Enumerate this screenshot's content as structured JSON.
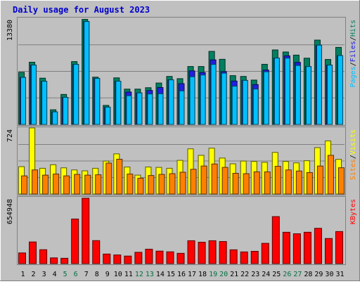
{
  "title": "Daily usage for August 2023",
  "colors": {
    "background": "#c0c0c0",
    "border_light": "#ffffff",
    "border_dark": "#808080",
    "title_text": "#0000cc",
    "hits_bar": "#008060",
    "files_bar": "#2020e0",
    "pages_bar": "#00c0ff",
    "visits_bar": "#ffff00",
    "sites_bar": "#ff8000",
    "kbytes_bar": "#ff0000",
    "weekend_day_label": "#007040",
    "weekday_day_label": "#000000"
  },
  "chart_data": [
    {
      "type": "bar",
      "panel": "hits-files-pages",
      "y_tick_label": "13380",
      "legend": [
        "Pages",
        "Files",
        "Hits"
      ],
      "legend_separator": "/",
      "categories": [
        "1",
        "2",
        "3",
        "4",
        "5",
        "6",
        "7",
        "8",
        "9",
        "10",
        "11",
        "12",
        "13",
        "14",
        "15",
        "16",
        "17",
        "18",
        "19",
        "20",
        "21",
        "22",
        "23",
        "24",
        "25",
        "26",
        "27",
        "28",
        "29",
        "30",
        "31"
      ],
      "ylim": [
        0,
        13380
      ],
      "grid": true,
      "series": [
        {
          "name": "Hits",
          "color_key": "hits_bar",
          "values": [
            6570,
            7840,
            5830,
            1850,
            3780,
            7920,
            13240,
            5960,
            2400,
            5870,
            4450,
            4450,
            4630,
            5220,
            6050,
            5770,
            7300,
            7300,
            9210,
            8210,
            6150,
            6050,
            5590,
            7580,
            9390,
            9130,
            8740,
            8350,
            10630,
            8190,
            9710
          ]
        },
        {
          "name": "Files",
          "color_key": "files_bar",
          "values": [
            5930,
            7480,
            5440,
            1580,
            3410,
            7570,
            12970,
            5800,
            2180,
            5450,
            4080,
            3970,
            4280,
            4650,
            5620,
            5140,
            6750,
            6540,
            8140,
            6660,
            5470,
            5550,
            5020,
            6860,
            8370,
            8650,
            7820,
            7300,
            9990,
            7480,
            8680
          ]
        },
        {
          "name": "Pages",
          "color_key": "pages_bar",
          "values": [
            5930,
            7480,
            5440,
            1580,
            3410,
            7570,
            12970,
            5800,
            2180,
            5450,
            3620,
            3970,
            3840,
            3870,
            5620,
            4230,
            6010,
            6230,
            7560,
            6460,
            4820,
            5550,
            4460,
            6630,
            8370,
            8350,
            7430,
            7300,
            9990,
            7480,
            8680
          ]
        }
      ]
    },
    {
      "type": "bar",
      "panel": "visits-sites",
      "y_tick_label": "724",
      "legend": [
        "Sites",
        "Visits"
      ],
      "legend_separator": "/",
      "categories": [
        "1",
        "2",
        "3",
        "4",
        "5",
        "6",
        "7",
        "8",
        "9",
        "10",
        "11",
        "12",
        "13",
        "14",
        "15",
        "16",
        "17",
        "18",
        "19",
        "20",
        "21",
        "22",
        "23",
        "24",
        "25",
        "26",
        "27",
        "28",
        "29",
        "30",
        "31"
      ],
      "ylim": [
        0,
        724
      ],
      "grid": true,
      "series": [
        {
          "name": "Visits",
          "color_key": "visits_bar",
          "values": [
            300,
            724,
            282,
            321,
            287,
            264,
            254,
            282,
            361,
            440,
            296,
            207,
            296,
            292,
            282,
            369,
            495,
            424,
            502,
            394,
            331,
            361,
            357,
            347,
            456,
            357,
            341,
            365,
            508,
            582,
            380
          ]
        },
        {
          "name": "Sites",
          "color_key": "sites_bar",
          "values": [
            199,
            264,
            207,
            219,
            199,
            215,
            207,
            211,
            339,
            381,
            219,
            173,
            203,
            215,
            223,
            239,
            271,
            307,
            329,
            292,
            227,
            223,
            243,
            243,
            304,
            264,
            252,
            235,
            307,
            424,
            288
          ]
        }
      ]
    },
    {
      "type": "bar",
      "panel": "kbytes",
      "y_tick_label": "654948",
      "legend": [
        "KBytes"
      ],
      "categories": [
        "1",
        "2",
        "3",
        "4",
        "5",
        "6",
        "7",
        "8",
        "9",
        "10",
        "11",
        "12",
        "13",
        "14",
        "15",
        "16",
        "17",
        "18",
        "19",
        "20",
        "21",
        "22",
        "23",
        "24",
        "25",
        "26",
        "27",
        "28",
        "29",
        "30",
        "31"
      ],
      "ylim": [
        0,
        654948
      ],
      "grid": false,
      "series": [
        {
          "name": "KBytes",
          "color_key": "kbytes_bar",
          "values": [
            106000,
            215000,
            138000,
            57000,
            53000,
            442000,
            648000,
            228000,
            95000,
            86000,
            75000,
            112000,
            143000,
            124000,
            117000,
            102000,
            227000,
            212000,
            227000,
            219000,
            137000,
            116000,
            122000,
            201000,
            466000,
            311000,
            296000,
            311000,
            350000,
            249000,
            318000
          ]
        }
      ]
    }
  ],
  "x_axis": {
    "labels": [
      "1",
      "2",
      "3",
      "4",
      "5",
      "6",
      "7",
      "8",
      "9",
      "10",
      "11",
      "12",
      "13",
      "14",
      "15",
      "16",
      "17",
      "18",
      "19",
      "20",
      "21",
      "22",
      "23",
      "24",
      "25",
      "26",
      "27",
      "28",
      "29",
      "30",
      "31"
    ],
    "weekend": [
      false,
      false,
      false,
      false,
      true,
      true,
      false,
      false,
      false,
      false,
      false,
      true,
      true,
      false,
      false,
      false,
      false,
      false,
      true,
      true,
      false,
      false,
      false,
      false,
      false,
      true,
      true,
      false,
      false,
      false,
      false
    ]
  }
}
